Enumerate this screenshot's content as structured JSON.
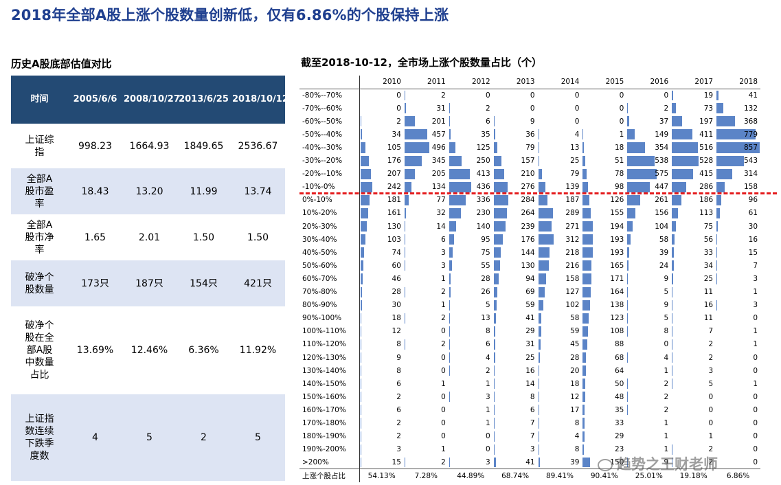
{
  "title": "2018年全部A股上涨个股数量创新低，仅有6.86%的个股保持上涨",
  "left": {
    "subtitle": "历史A股底部估值对比",
    "headers": [
      "时间",
      "2005/6/6",
      "2008/10/27",
      "2013/6/25",
      "2018/10/12"
    ],
    "rows": [
      {
        "label": "上证综指",
        "values": [
          "998.23",
          "1664.93",
          "1849.65",
          "2536.67"
        ]
      },
      {
        "label": "全部A股市盈率",
        "values": [
          "18.43",
          "13.20",
          "11.99",
          "13.74"
        ]
      },
      {
        "label": "全部A股市净率",
        "values": [
          "1.65",
          "2.01",
          "1.50",
          "1.50"
        ]
      },
      {
        "label": "破净个股数量",
        "values": [
          "173只",
          "187只",
          "154只",
          "421只"
        ]
      },
      {
        "label": "破净个股在全部A股中数量占比",
        "values": [
          "13.69%",
          "12.46%",
          "6.36%",
          "11.92%"
        ]
      },
      {
        "label": "上证指数连续下跌季度数",
        "values": [
          "4",
          "5",
          "2",
          "5"
        ]
      }
    ]
  },
  "right": {
    "subtitle": "截至2018-10-12，全市场上涨个股数量占比（个）",
    "years": [
      "2010",
      "2011",
      "2012",
      "2013",
      "2014",
      "2015",
      "2016",
      "2017",
      "2018"
    ],
    "rows": [
      {
        "label": "-80%--70%",
        "values": [
          0,
          2,
          0,
          0,
          0,
          0,
          0,
          19,
          41
        ]
      },
      {
        "label": "-70%--60%",
        "values": [
          0,
          31,
          2,
          0,
          0,
          0,
          2,
          73,
          132
        ]
      },
      {
        "label": "-60%--50%",
        "values": [
          2,
          201,
          6,
          9,
          0,
          0,
          37,
          197,
          368
        ]
      },
      {
        "label": "-50%--40%",
        "values": [
          34,
          457,
          35,
          36,
          4,
          1,
          149,
          411,
          779
        ]
      },
      {
        "label": "-40%--30%",
        "values": [
          105,
          496,
          125,
          79,
          13,
          18,
          354,
          516,
          857
        ]
      },
      {
        "label": "-30%--20%",
        "values": [
          176,
          345,
          250,
          157,
          25,
          51,
          538,
          528,
          543
        ]
      },
      {
        "label": "-20%--10%",
        "values": [
          207,
          205,
          413,
          210,
          79,
          78,
          575,
          415,
          314
        ]
      },
      {
        "label": "-10%-0%",
        "values": [
          242,
          134,
          436,
          276,
          139,
          98,
          447,
          286,
          158
        ]
      },
      {
        "label": "0%-10%",
        "values": [
          181,
          77,
          336,
          284,
          187,
          126,
          261,
          186,
          96
        ]
      },
      {
        "label": "10%-20%",
        "values": [
          161,
          32,
          230,
          264,
          289,
          155,
          156,
          113,
          61
        ]
      },
      {
        "label": "20%-30%",
        "values": [
          130,
          14,
          140,
          239,
          271,
          194,
          104,
          75,
          30
        ]
      },
      {
        "label": "30%-40%",
        "values": [
          103,
          6,
          95,
          176,
          312,
          193,
          58,
          56,
          16
        ]
      },
      {
        "label": "40%-50%",
        "values": [
          74,
          3,
          75,
          144,
          218,
          193,
          39,
          33,
          15
        ]
      },
      {
        "label": "50%-60%",
        "values": [
          60,
          3,
          55,
          130,
          216,
          165,
          24,
          34,
          7
        ]
      },
      {
        "label": "60%-70%",
        "values": [
          46,
          1,
          28,
          94,
          158,
          171,
          9,
          25,
          3
        ]
      },
      {
        "label": "70%-80%",
        "values": [
          28,
          2,
          26,
          69,
          127,
          164,
          5,
          11,
          1
        ]
      },
      {
        "label": "80%-90%",
        "values": [
          30,
          1,
          5,
          59,
          102,
          138,
          9,
          16,
          3
        ]
      },
      {
        "label": "90%-100%",
        "values": [
          18,
          2,
          13,
          41,
          58,
          123,
          5,
          11,
          0
        ]
      },
      {
        "label": "100%-110%",
        "values": [
          12,
          0,
          8,
          29,
          59,
          108,
          8,
          7,
          1
        ]
      },
      {
        "label": "110%-120%",
        "values": [
          8,
          2,
          6,
          31,
          45,
          88,
          0,
          2,
          1
        ]
      },
      {
        "label": "120%-130%",
        "values": [
          9,
          0,
          4,
          25,
          28,
          68,
          4,
          2,
          0
        ]
      },
      {
        "label": "130%-140%",
        "values": [
          8,
          0,
          2,
          16,
          20,
          64,
          1,
          3,
          0
        ]
      },
      {
        "label": "140%-150%",
        "values": [
          6,
          1,
          1,
          14,
          18,
          50,
          2,
          5,
          1
        ]
      },
      {
        "label": "150%-160%",
        "values": [
          2,
          0,
          3,
          8,
          12,
          48,
          2,
          0,
          0
        ]
      },
      {
        "label": "160%-170%",
        "values": [
          6,
          0,
          1,
          6,
          17,
          35,
          2,
          0,
          0
        ]
      },
      {
        "label": "170%-180%",
        "values": [
          2,
          0,
          1,
          7,
          8,
          33,
          1,
          0,
          0
        ]
      },
      {
        "label": "180%-190%",
        "values": [
          2,
          0,
          0,
          7,
          4,
          29,
          1,
          1,
          0
        ]
      },
      {
        "label": "190%-200%",
        "values": [
          3,
          1,
          0,
          3,
          8,
          23,
          1,
          2,
          0
        ]
      },
      {
        "label": ">200%",
        "values": [
          15,
          2,
          3,
          41,
          39,
          150,
          9,
          2,
          0
        ]
      }
    ],
    "ratio_label": "上涨个股占比",
    "ratios": [
      "54.13%",
      "7.28%",
      "44.89%",
      "68.74%",
      "89.41%",
      "90.41%",
      "25.01%",
      "19.18%",
      "6.86%"
    ],
    "bar_color": "#5b84c7",
    "divider_color": "#e41a1c"
  },
  "watermark": "趋势之王财老师"
}
